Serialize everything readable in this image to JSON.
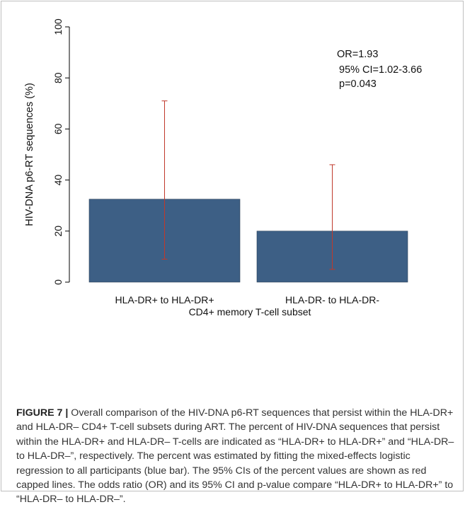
{
  "chart_data": {
    "type": "bar",
    "categories": [
      "HLA-DR+ to HLA-DR+",
      "HLA-DR- to HLA-DR-"
    ],
    "values": [
      32.5,
      20
    ],
    "error_bars": [
      {
        "lower": 9,
        "upper": 71
      },
      {
        "lower": 5,
        "upper": 46
      }
    ],
    "xlabel": "CD4+ memory T-cell subset",
    "ylabel": "HIV-DNA p6-RT sequences (%)",
    "ylim": [
      0,
      100
    ],
    "yticks": [
      0,
      20,
      40,
      60,
      80,
      100
    ],
    "grid": false,
    "annotations": [
      "OR=1.93",
      "95% CI=1.02-3.66",
      "p=0.043"
    ],
    "colors": {
      "bar": "#3d5f85",
      "error": "#c0392b"
    }
  },
  "caption": {
    "label": "FIGURE 7 |",
    "text": " Overall comparison of the HIV-DNA p6-RT sequences that persist within the HLA-DR+ and HLA-DR– CD4+ T-cell subsets during ART. The percent of HIV-DNA sequences that persist within the HLA-DR+ and HLA-DR– T-cells are indicated as “HLA-DR+ to HLA-DR+” and “HLA-DR– to HLA-DR–”, respectively. The percent was estimated by fitting the mixed-effects logistic regression to all participants (blue bar). The 95% CIs of the percent values are shown as red capped lines. The odds ratio (OR) and its 95% CI and p-value compare “HLA-DR+ to HLA-DR+” to “HLA-DR– to HLA-DR–”."
  }
}
